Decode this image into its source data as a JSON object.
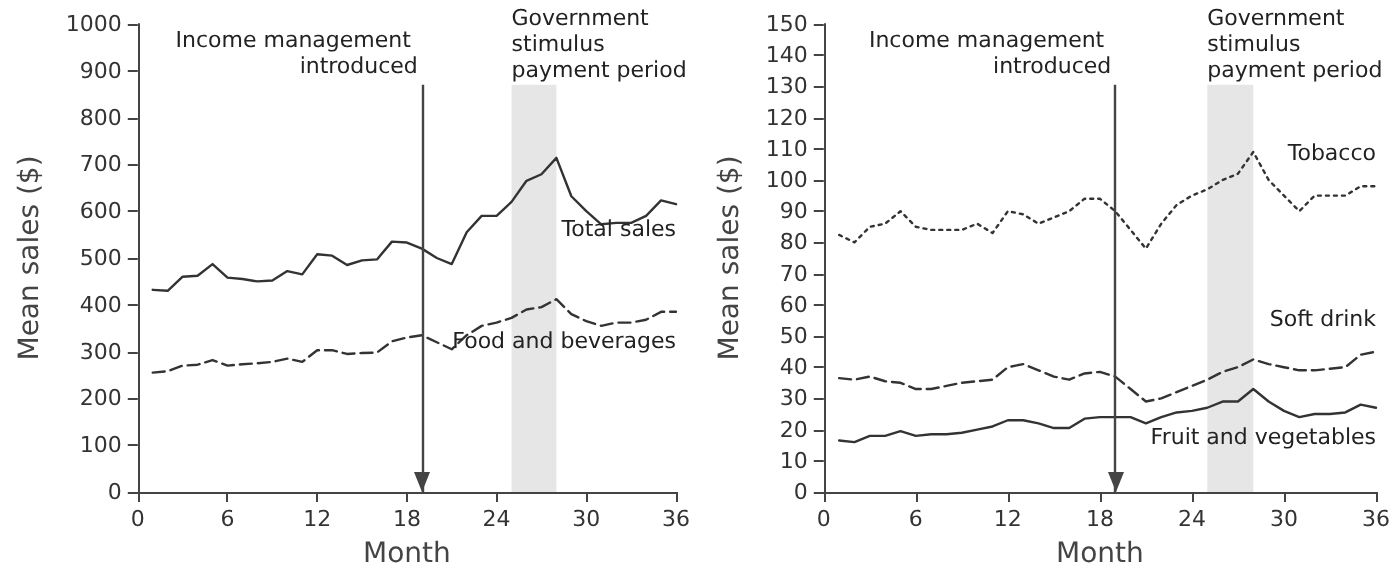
{
  "chart_data": [
    {
      "type": "line",
      "xlabel": "Month",
      "ylabel": "Mean sales ($)",
      "xlim": [
        0,
        36
      ],
      "xticks": [
        0,
        6,
        12,
        18,
        24,
        30,
        36
      ],
      "ylim": [
        0,
        1000
      ],
      "yticks": [
        0,
        100,
        200,
        300,
        400,
        500,
        600,
        700,
        800,
        900,
        1000
      ],
      "grid": false,
      "legend": false,
      "marker": "none",
      "x": [
        1,
        2,
        3,
        4,
        5,
        6,
        7,
        8,
        9,
        10,
        11,
        12,
        13,
        14,
        15,
        16,
        17,
        18,
        19,
        20,
        21,
        22,
        23,
        24,
        25,
        26,
        27,
        28,
        29,
        30,
        31,
        32,
        33,
        34,
        35,
        36
      ],
      "series": [
        {
          "name": "Total sales",
          "color": "#333333",
          "line_style": "solid",
          "values": [
            432,
            430,
            460,
            462,
            487,
            458,
            455,
            450,
            452,
            472,
            465,
            508,
            505,
            485,
            495,
            497,
            535,
            533,
            520,
            500,
            487,
            555,
            590,
            590,
            620,
            665,
            679,
            714,
            632,
            600,
            572,
            575,
            575,
            590,
            623,
            615
          ]
        },
        {
          "name": "Food and beverages",
          "color": "#333333",
          "line_style": "dashed",
          "values": [
            255,
            258,
            270,
            272,
            282,
            270,
            273,
            275,
            278,
            285,
            278,
            303,
            303,
            295,
            297,
            298,
            322,
            330,
            335,
            320,
            305,
            335,
            355,
            362,
            372,
            390,
            395,
            412,
            380,
            365,
            355,
            362,
            362,
            368,
            385,
            385
          ]
        }
      ],
      "ref_lines": [
        {
          "axis": "x",
          "value": 19,
          "label": "Income management introduced"
        }
      ],
      "bands": [
        {
          "axis": "x",
          "from": 25,
          "to": 28,
          "label": "Government stimulus payment period",
          "color": "#e6e6e6"
        }
      ]
    },
    {
      "type": "line",
      "xlabel": "Month",
      "ylabel": "Mean sales ($)",
      "xlim": [
        0,
        36
      ],
      "xticks": [
        0,
        6,
        12,
        18,
        24,
        30,
        36
      ],
      "ylim": [
        0,
        150
      ],
      "yticks": [
        0,
        10,
        20,
        30,
        40,
        50,
        60,
        70,
        80,
        90,
        100,
        110,
        120,
        130,
        140,
        150
      ],
      "grid": false,
      "legend": false,
      "marker": "none",
      "x": [
        1,
        2,
        3,
        4,
        5,
        6,
        7,
        8,
        9,
        10,
        11,
        12,
        13,
        14,
        15,
        16,
        17,
        18,
        19,
        20,
        21,
        22,
        23,
        24,
        25,
        26,
        27,
        28,
        29,
        30,
        31,
        32,
        33,
        34,
        35,
        36
      ],
      "series": [
        {
          "name": "Tobacco",
          "color": "#333333",
          "line_style": "dotted",
          "values": [
            82.4,
            80,
            85,
            86,
            90,
            85,
            84,
            84,
            84,
            86,
            83,
            90,
            89,
            86,
            88,
            90,
            94,
            94,
            90,
            84,
            78,
            86,
            92,
            95,
            97,
            100,
            102,
            109,
            100,
            95,
            90,
            95,
            95,
            95,
            98,
            98
          ]
        },
        {
          "name": "Soft drink",
          "color": "#333333",
          "line_style": "dashed",
          "values": [
            36.5,
            36,
            37,
            35.5,
            35,
            33,
            33,
            34,
            35,
            35.5,
            36,
            40,
            41,
            39,
            37,
            36,
            38,
            38.5,
            37,
            33,
            29,
            30,
            32,
            34,
            36,
            38.5,
            40,
            42.5,
            41,
            40,
            39,
            39,
            39.5,
            40,
            44,
            45
          ]
        },
        {
          "name": "Fruit and vegetables",
          "color": "#333333",
          "line_style": "solid",
          "values": [
            16.5,
            16,
            18,
            18,
            19.5,
            18,
            18.5,
            18.5,
            19,
            20,
            21,
            23,
            23,
            22,
            20.5,
            20.5,
            23.5,
            24,
            24,
            24,
            22,
            24,
            25.5,
            26,
            27,
            29,
            29,
            33,
            29,
            26,
            24,
            25,
            25,
            25.5,
            28,
            27
          ]
        }
      ],
      "ref_lines": [
        {
          "axis": "x",
          "value": 19,
          "label": "Income management introduced"
        }
      ],
      "bands": [
        {
          "axis": "x",
          "from": 25,
          "to": 28,
          "label": "Government stimulus payment period",
          "color": "#e6e6e6"
        }
      ]
    }
  ]
}
